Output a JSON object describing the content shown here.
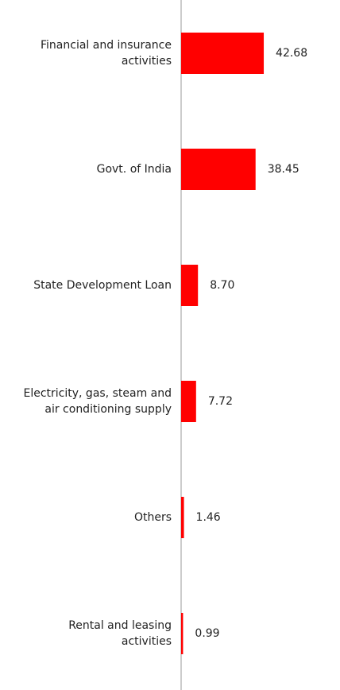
{
  "chart_data": {
    "type": "hbar",
    "categories": [
      "Financial and insurance activities",
      "Govt. of India",
      "State Development Loan",
      "Electricity, gas, steam and air conditioning supply",
      "Others",
      "Rental and leasing activities"
    ],
    "values": [
      42.68,
      38.45,
      8.7,
      7.72,
      1.46,
      0.99
    ],
    "value_labels": [
      "42.68",
      "38.45",
      "8.70",
      "7.72",
      "1.46",
      "0.99"
    ],
    "color": "#ff0000",
    "xlim": [
      0,
      80
    ]
  }
}
